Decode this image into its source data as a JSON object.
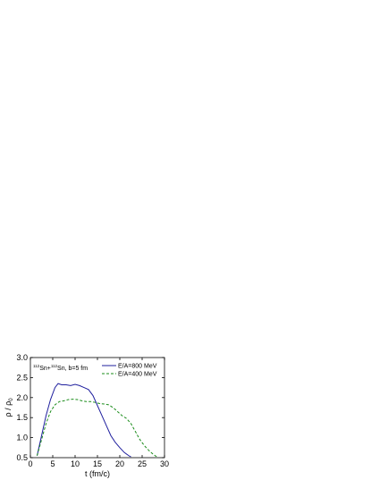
{
  "chart_data": {
    "type": "line",
    "xlabel": "t (fm/c)",
    "ylabel": "ρ / ρ",
    "ylabel_subscript": "0",
    "xlim": [
      0,
      30
    ],
    "ylim": [
      0.5,
      3.0
    ],
    "xticks": [
      0,
      5,
      10,
      15,
      20,
      25,
      30
    ],
    "yticks": [
      0.5,
      1.0,
      1.5,
      2.0,
      2.5,
      3.0
    ],
    "xtick_labels": [
      "0",
      "5",
      "10",
      "15",
      "20",
      "25",
      "30"
    ],
    "ytick_labels": [
      "0.5",
      "1.0",
      "1.5",
      "2.0",
      "2.5",
      "3.0"
    ],
    "annotation": {
      "sup1": "112",
      "part1": "Sn+",
      "sup2": "112",
      "part2": "Sn, b=5 fm"
    },
    "legend_position": "top-right",
    "grid": false,
    "series": [
      {
        "name": "E/A=800 MeV",
        "color": "#1f1f9e",
        "dash": "solid",
        "x": [
          1.5,
          2.5,
          3.5,
          4.5,
          5.5,
          6.2,
          7,
          8,
          9,
          10,
          11,
          12,
          13,
          14,
          15,
          16,
          17,
          18,
          19,
          20,
          21,
          22,
          22.5
        ],
        "y": [
          0.55,
          1.05,
          1.55,
          1.95,
          2.25,
          2.35,
          2.32,
          2.32,
          2.3,
          2.33,
          2.3,
          2.25,
          2.2,
          2.05,
          1.8,
          1.55,
          1.3,
          1.05,
          0.88,
          0.75,
          0.63,
          0.55,
          0.52
        ]
      },
      {
        "name": "E/A=400 MeV",
        "color": "#1a8c1a",
        "dash": "dashed",
        "x": [
          1.5,
          2.5,
          3.5,
          4.5,
          5.5,
          6.5,
          7.5,
          8.5,
          9.5,
          10.5,
          11.5,
          12.5,
          13.5,
          14.5,
          15.5,
          16.5,
          17.5,
          18.5,
          19.5,
          20.5,
          21.5,
          22.5,
          23.5,
          24.5,
          25.5,
          26.5,
          27.5,
          28.3
        ],
        "y": [
          0.55,
          0.95,
          1.35,
          1.65,
          1.82,
          1.9,
          1.92,
          1.95,
          1.96,
          1.95,
          1.92,
          1.9,
          1.9,
          1.88,
          1.85,
          1.84,
          1.82,
          1.75,
          1.65,
          1.55,
          1.48,
          1.35,
          1.15,
          0.95,
          0.8,
          0.68,
          0.58,
          0.52
        ]
      }
    ]
  }
}
